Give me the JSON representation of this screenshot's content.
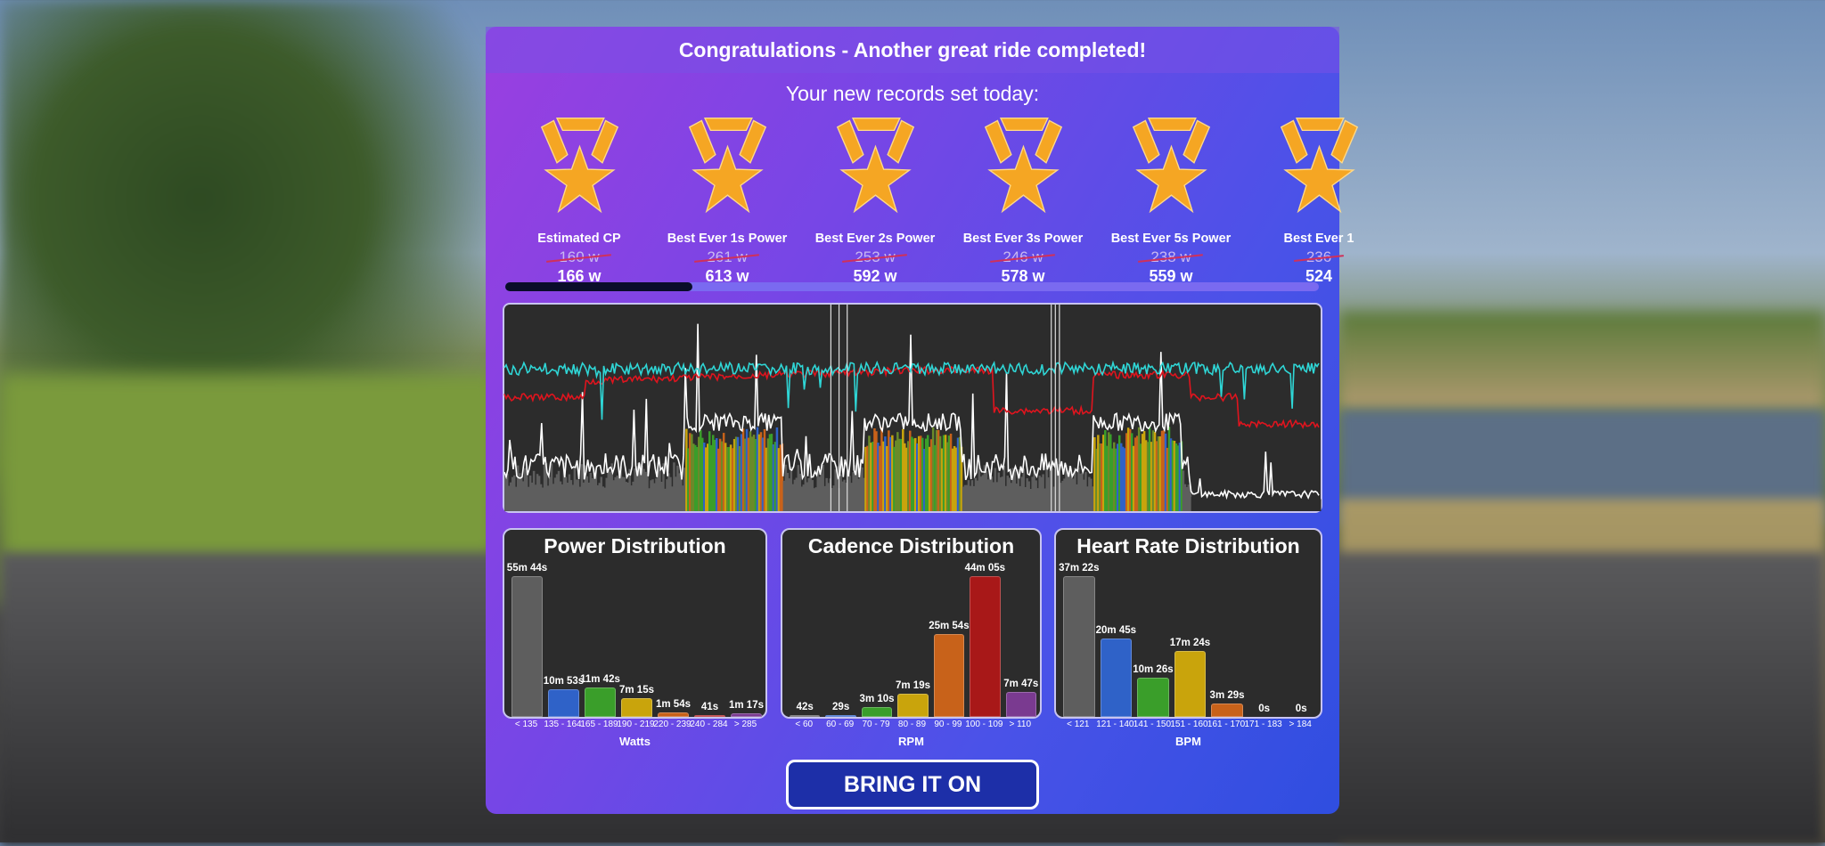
{
  "header": {
    "title": "Congratulations - Another great ride completed!",
    "subtitle": "Your new records set today:"
  },
  "records": [
    {
      "label": "Estimated CP",
      "previous": "160 w",
      "new": "166 w",
      "icon": "medal-star-icon"
    },
    {
      "label": "Best Ever 1s Power",
      "previous": "261 w",
      "new": "613 w",
      "icon": "medal-star-icon"
    },
    {
      "label": "Best Ever 2s Power",
      "previous": "253 w",
      "new": "592 w",
      "icon": "medal-star-icon"
    },
    {
      "label": "Best Ever 3s Power",
      "previous": "246 w",
      "new": "578 w",
      "icon": "medal-star-icon"
    },
    {
      "label": "Best Ever 5s Power",
      "previous": "238 w",
      "new": "559 w",
      "icon": "medal-star-icon"
    },
    {
      "label": "Best Ever 1",
      "previous": "236",
      "new": "524",
      "icon": "medal-star-icon"
    }
  ],
  "records_scroll_position": 0.23,
  "colors": {
    "medal": "#f5a623",
    "power_line": "#ffffff",
    "heart_rate_line": "#e0141e",
    "cadence_line": "#2fd6d6",
    "chart_bg": "#2c2c2c"
  },
  "distributions": [
    {
      "title": "Power Distribution",
      "unit": "Watts",
      "categories": [
        "< 135",
        "135 - 164",
        "165 - 189",
        "190 - 219",
        "220 - 239",
        "240 - 284",
        "> 285"
      ],
      "values": [
        "55m 44s",
        "10m 53s",
        "11m 42s",
        "7m 15s",
        "1m 54s",
        "41s",
        "1m 17s"
      ],
      "colors": [
        "#5e5e5e",
        "#2f62c8",
        "#3a9e2a",
        "#c9a40c",
        "#c8621a",
        "#b02020",
        "#7a3a90"
      ]
    },
    {
      "title": "Cadence Distribution",
      "unit": "RPM",
      "categories": [
        "< 60",
        "60 - 69",
        "70 - 79",
        "80 - 89",
        "90 - 99",
        "100 - 109",
        "> 110"
      ],
      "values": [
        "42s",
        "29s",
        "3m 10s",
        "7m 19s",
        "25m 54s",
        "44m 05s",
        "7m 47s"
      ],
      "colors": [
        "#5e5e5e",
        "#2f62c8",
        "#3a9e2a",
        "#c9a40c",
        "#c8621a",
        "#a81818",
        "#7a3a90"
      ]
    },
    {
      "title": "Heart Rate Distribution",
      "unit": "BPM",
      "categories": [
        "< 121",
        "121 - 140",
        "141 - 150",
        "151 - 160",
        "161 - 170",
        "171 - 183",
        "> 184"
      ],
      "values": [
        "37m 22s",
        "20m 45s",
        "10m 26s",
        "17m 24s",
        "3m 29s",
        "0s",
        "0s"
      ],
      "colors": [
        "#5e5e5e",
        "#2f62c8",
        "#3a9e2a",
        "#c9a40c",
        "#c8621a",
        "#b02020",
        "#7a3a90"
      ]
    }
  ],
  "button": {
    "label": "BRING IT ON"
  }
}
